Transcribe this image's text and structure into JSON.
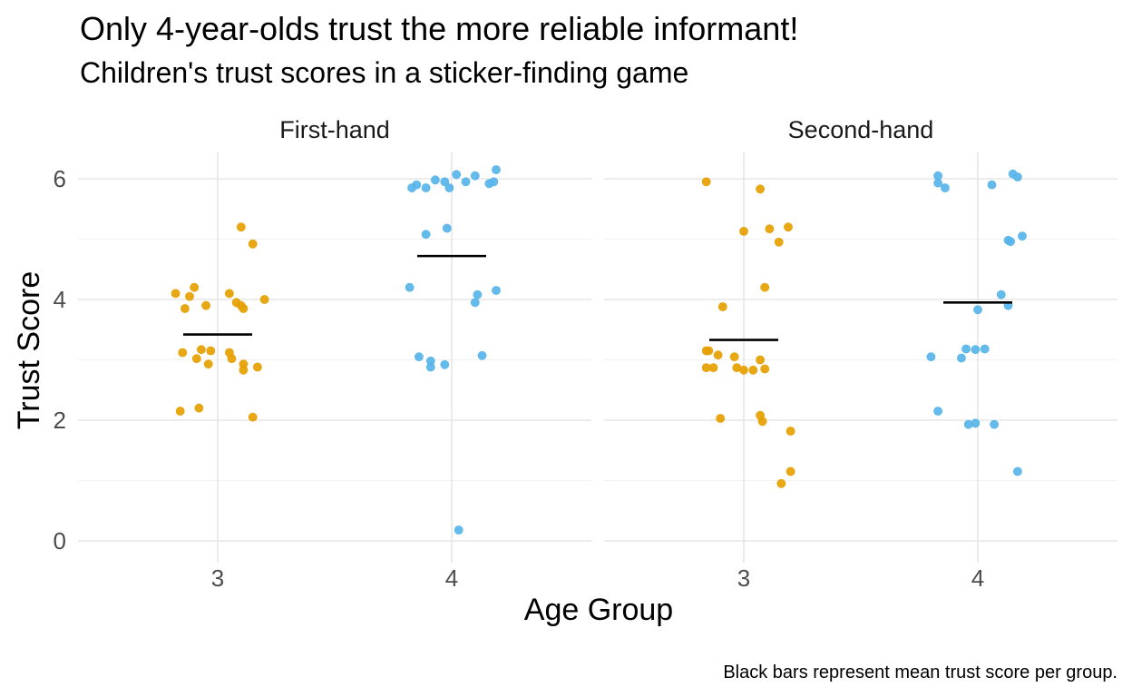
{
  "chart_data": {
    "type": "scatter",
    "title": "Only 4-year-olds trust the more reliable informant!",
    "subtitle": "Children's trust scores in a sticker-finding game",
    "xlabel": "Age Group",
    "ylabel": "Trust Score",
    "caption": "Black bars represent mean trust score per group.",
    "categories": [
      "3",
      "4"
    ],
    "ylim": [
      -0.3,
      6.45
    ],
    "yticks": [
      "0",
      "2",
      "4",
      "6"
    ],
    "grid": true,
    "colors": {
      "3": "#E69F00",
      "4": "#56B4E9",
      "mean_bar": "#000000"
    },
    "facets": [
      {
        "label": "First-hand",
        "groups": [
          {
            "age": "3",
            "mean": 3.42,
            "points": [
              {
                "x": -0.18,
                "y": 4.1
              },
              {
                "x": -0.14,
                "y": 3.85
              },
              {
                "x": -0.12,
                "y": 4.05
              },
              {
                "x": -0.1,
                "y": 4.2
              },
              {
                "x": -0.05,
                "y": 3.9
              },
              {
                "x": 0.05,
                "y": 4.1
              },
              {
                "x": 0.08,
                "y": 3.95
              },
              {
                "x": 0.1,
                "y": 3.9
              },
              {
                "x": 0.11,
                "y": 3.85
              },
              {
                "x": 0.2,
                "y": 4.0
              },
              {
                "x": 0.1,
                "y": 5.2
              },
              {
                "x": 0.15,
                "y": 4.92
              },
              {
                "x": -0.15,
                "y": 3.12
              },
              {
                "x": -0.09,
                "y": 3.02
              },
              {
                "x": -0.07,
                "y": 3.17
              },
              {
                "x": -0.04,
                "y": 2.93
              },
              {
                "x": -0.03,
                "y": 3.15
              },
              {
                "x": 0.05,
                "y": 3.12
              },
              {
                "x": 0.06,
                "y": 3.02
              },
              {
                "x": 0.11,
                "y": 2.93
              },
              {
                "x": 0.11,
                "y": 2.83
              },
              {
                "x": 0.17,
                "y": 2.88
              },
              {
                "x": -0.16,
                "y": 2.15
              },
              {
                "x": -0.08,
                "y": 2.2
              },
              {
                "x": 0.15,
                "y": 2.05
              }
            ]
          },
          {
            "age": "4",
            "mean": 4.72,
            "points": [
              {
                "x": -0.17,
                "y": 5.85
              },
              {
                "x": -0.15,
                "y": 5.9
              },
              {
                "x": -0.11,
                "y": 5.85
              },
              {
                "x": -0.07,
                "y": 5.98
              },
              {
                "x": -0.03,
                "y": 5.95
              },
              {
                "x": -0.01,
                "y": 5.85
              },
              {
                "x": 0.02,
                "y": 6.07
              },
              {
                "x": 0.06,
                "y": 5.95
              },
              {
                "x": 0.1,
                "y": 6.05
              },
              {
                "x": 0.16,
                "y": 5.92
              },
              {
                "x": 0.18,
                "y": 5.95
              },
              {
                "x": 0.19,
                "y": 6.15
              },
              {
                "x": -0.11,
                "y": 5.08
              },
              {
                "x": -0.02,
                "y": 5.18
              },
              {
                "x": -0.18,
                "y": 4.2
              },
              {
                "x": 0.11,
                "y": 4.08
              },
              {
                "x": 0.1,
                "y": 3.95
              },
              {
                "x": 0.19,
                "y": 4.15
              },
              {
                "x": -0.14,
                "y": 3.05
              },
              {
                "x": -0.09,
                "y": 2.98
              },
              {
                "x": -0.09,
                "y": 2.88
              },
              {
                "x": -0.03,
                "y": 2.92
              },
              {
                "x": 0.13,
                "y": 3.07
              },
              {
                "x": 0.03,
                "y": 0.18
              }
            ]
          }
        ]
      },
      {
        "label": "Second-hand",
        "groups": [
          {
            "age": "3",
            "mean": 3.33,
            "points": [
              {
                "x": -0.16,
                "y": 5.95
              },
              {
                "x": 0.07,
                "y": 5.83
              },
              {
                "x": 0.0,
                "y": 5.13
              },
              {
                "x": 0.11,
                "y": 5.17
              },
              {
                "x": 0.19,
                "y": 5.2
              },
              {
                "x": 0.15,
                "y": 4.95
              },
              {
                "x": 0.09,
                "y": 4.2
              },
              {
                "x": -0.09,
                "y": 3.88
              },
              {
                "x": -0.16,
                "y": 3.15
              },
              {
                "x": -0.15,
                "y": 3.15
              },
              {
                "x": -0.11,
                "y": 3.08
              },
              {
                "x": -0.04,
                "y": 3.05
              },
              {
                "x": 0.07,
                "y": 3.0
              },
              {
                "x": -0.16,
                "y": 2.87
              },
              {
                "x": -0.13,
                "y": 2.87
              },
              {
                "x": -0.03,
                "y": 2.87
              },
              {
                "x": 0.0,
                "y": 2.83
              },
              {
                "x": 0.04,
                "y": 2.83
              },
              {
                "x": 0.09,
                "y": 2.85
              },
              {
                "x": -0.1,
                "y": 2.03
              },
              {
                "x": 0.07,
                "y": 2.08
              },
              {
                "x": 0.08,
                "y": 1.98
              },
              {
                "x": 0.2,
                "y": 1.82
              },
              {
                "x": 0.2,
                "y": 1.15
              },
              {
                "x": 0.16,
                "y": 0.95
              }
            ]
          },
          {
            "age": "4",
            "mean": 3.95,
            "points": [
              {
                "x": -0.17,
                "y": 6.05
              },
              {
                "x": -0.17,
                "y": 5.93
              },
              {
                "x": -0.14,
                "y": 5.85
              },
              {
                "x": 0.06,
                "y": 5.9
              },
              {
                "x": 0.15,
                "y": 6.08
              },
              {
                "x": 0.17,
                "y": 6.03
              },
              {
                "x": 0.13,
                "y": 4.98
              },
              {
                "x": 0.14,
                "y": 4.96
              },
              {
                "x": 0.19,
                "y": 5.05
              },
              {
                "x": 0.1,
                "y": 4.08
              },
              {
                "x": 0.13,
                "y": 3.9
              },
              {
                "x": 0.0,
                "y": 3.83
              },
              {
                "x": -0.07,
                "y": 3.03
              },
              {
                "x": -0.05,
                "y": 3.18
              },
              {
                "x": -0.01,
                "y": 3.17
              },
              {
                "x": 0.03,
                "y": 3.18
              },
              {
                "x": -0.2,
                "y": 3.05
              },
              {
                "x": -0.17,
                "y": 2.15
              },
              {
                "x": -0.04,
                "y": 1.93
              },
              {
                "x": -0.01,
                "y": 1.95
              },
              {
                "x": 0.07,
                "y": 1.93
              },
              {
                "x": 0.17,
                "y": 1.15
              }
            ]
          }
        ]
      }
    ]
  }
}
